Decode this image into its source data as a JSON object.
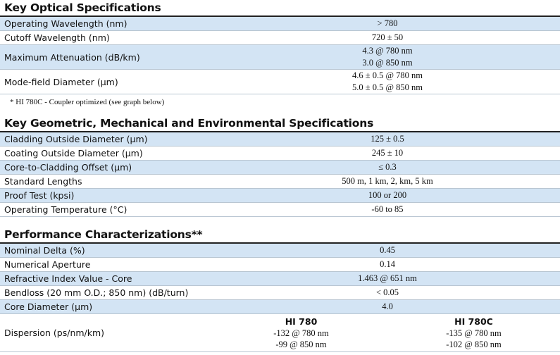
{
  "sections": [
    {
      "title": "Key Optical Specifications",
      "rows": [
        {
          "label": "Operating Wavelength (nm)",
          "value": [
            "> 780"
          ]
        },
        {
          "label": "Cutoff Wavelength  (nm)",
          "value": [
            "720 ± 50"
          ]
        },
        {
          "label": "Maximum Attenuation (dB/km)",
          "value": [
            "4.3 @ 780 nm",
            "3.0  @ 850 nm"
          ]
        },
        {
          "label": "Mode-field Diameter  (µm)",
          "value": [
            "4.6 ± 0.5 @ 780 nm",
            "5.0 ± 0.5 @ 850 nm"
          ]
        }
      ],
      "note": "*   HI 780C - Coupler optimized (see graph below)"
    },
    {
      "title": "Key Geometric, Mechanical and Environmental Specifications",
      "rows": [
        {
          "label": "Cladding Outside Diameter (µm)",
          "value": [
            "125 ± 0.5"
          ]
        },
        {
          "label": "Coating Outside Diameter  (µm)",
          "value": [
            "245 ± 10"
          ]
        },
        {
          "label": "Core-to-Cladding Offset  (µm)",
          "value": [
            "≤ 0.3"
          ]
        },
        {
          "label": "Standard Lengths",
          "value": [
            "500 m, 1 km, 2, km, 5 km"
          ]
        },
        {
          "label": "Proof Test  (kpsi)",
          "value": [
            "100 or 200"
          ]
        },
        {
          "label": "Operating Temperature  (°C)",
          "value": [
            "-60 to 85"
          ]
        }
      ]
    },
    {
      "title": "Performance Characterizations**",
      "rows": [
        {
          "label": "Nominal Delta  (%)",
          "value": [
            "0.45"
          ]
        },
        {
          "label": "Numerical Aperture",
          "value": [
            "0.14"
          ]
        },
        {
          "label": "Refractive Index Value - Core",
          "value": [
            "1.463 @ 651 nm"
          ]
        },
        {
          "label": "Bendloss (20 mm O.D.; 850 nm) (dB/turn)",
          "value": [
            "< 0.05"
          ]
        },
        {
          "label": "Core Diameter  (µm)",
          "value": [
            "4.0"
          ]
        },
        {
          "label": "Dispersion (ps/nm/km)",
          "columns": [
            {
              "heading": "HI 780",
              "values": [
                "-132 @ 780 nm",
                "-99 @ 850 nm"
              ]
            },
            {
              "heading": "HI 780C",
              "values": [
                "-135 @ 780 nm",
                "-102 @ 850 nm"
              ]
            }
          ]
        }
      ]
    }
  ]
}
